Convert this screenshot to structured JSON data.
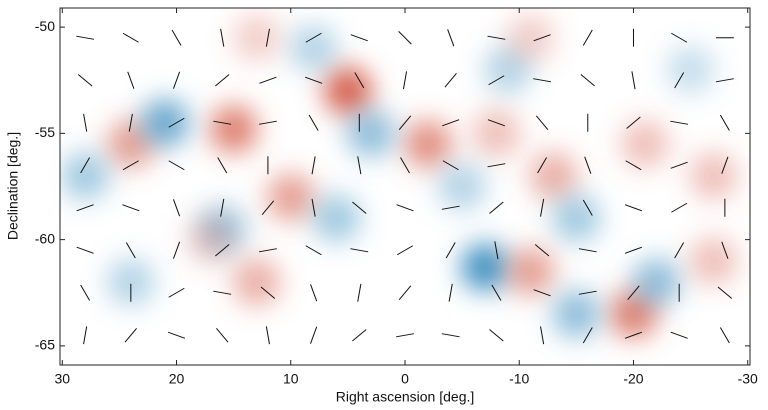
{
  "chart_data": {
    "type": "polarization-map",
    "xlabel": "Right ascension [deg.]",
    "ylabel": "Declination [deg.]",
    "xlim": [
      30.2,
      -30.2
    ],
    "ylim": [
      -65.9,
      -49.1
    ],
    "xticks": [
      30,
      20,
      10,
      0,
      -10,
      -20,
      -30
    ],
    "yticks": [
      -50,
      -55,
      -60,
      -65
    ],
    "positive_color": "#d6604d",
    "negative_color": "#4393c3",
    "blobs": {
      "x": [
        5,
        15,
        24,
        21,
        28,
        -2,
        3,
        -7,
        -11,
        -20,
        -15,
        -22,
        10,
        6,
        -13,
        -15,
        -21,
        -27,
        -9,
        -8,
        16,
        17,
        13,
        -5,
        -27,
        24,
        8,
        13,
        -11,
        -25
      ],
      "y": [
        -53,
        -54.8,
        -55.5,
        -54.5,
        -57,
        -55.5,
        -55,
        -61.3,
        -61.5,
        -63.5,
        -63.5,
        -62,
        -58,
        -59,
        -57,
        -59,
        -55.5,
        -57,
        -52,
        -55,
        -59.5,
        -60,
        -62,
        -57.5,
        -61,
        -62,
        -51,
        -50.5,
        -50.5,
        -52
      ],
      "values": [
        1.0,
        0.8,
        0.6,
        -0.8,
        -0.5,
        0.7,
        -0.6,
        -1.0,
        0.6,
        0.8,
        -0.6,
        -0.6,
        0.6,
        -0.5,
        0.5,
        -0.5,
        0.4,
        0.4,
        -0.4,
        0.4,
        -0.5,
        0.3,
        0.5,
        -0.4,
        0.4,
        -0.4,
        -0.4,
        0.3,
        0.3,
        -0.3
      ]
    },
    "sticks": {
      "ra": [
        28,
        24,
        20,
        16,
        12,
        8,
        4,
        0,
        -4,
        -8,
        -12,
        -16,
        -20,
        -24,
        -28
      ],
      "dec": [
        -50.5,
        -52.5,
        -54.5,
        -56.5,
        -58.5,
        -60.5,
        -62.5,
        -64.5
      ],
      "angles": [
        [
          10,
          30,
          60,
          80,
          100,
          150,
          20,
          45,
          70,
          10,
          160,
          120,
          90,
          30,
          0
        ],
        [
          40,
          70,
          110,
          140,
          160,
          20,
          60,
          100,
          130,
          150,
          10,
          40,
          80,
          120,
          170
        ],
        [
          80,
          100,
          150,
          10,
          170,
          60,
          90,
          130,
          160,
          20,
          50,
          90,
          140,
          10,
          60
        ],
        [
          120,
          150,
          30,
          60,
          90,
          100,
          80,
          60,
          30,
          170,
          120,
          70,
          30,
          160,
          110
        ],
        [
          160,
          20,
          70,
          100,
          130,
          80,
          40,
          20,
          170,
          140,
          100,
          60,
          20,
          150,
          90
        ],
        [
          20,
          60,
          110,
          140,
          170,
          30,
          10,
          150,
          120,
          80,
          40,
          10,
          160,
          120,
          70
        ],
        [
          60,
          90,
          150,
          10,
          40,
          70,
          100,
          130,
          100,
          60,
          20,
          170,
          130,
          90,
          40
        ],
        [
          100,
          130,
          20,
          50,
          80,
          110,
          140,
          170,
          10,
          40,
          80,
          120,
          160,
          20,
          60
        ]
      ]
    }
  }
}
